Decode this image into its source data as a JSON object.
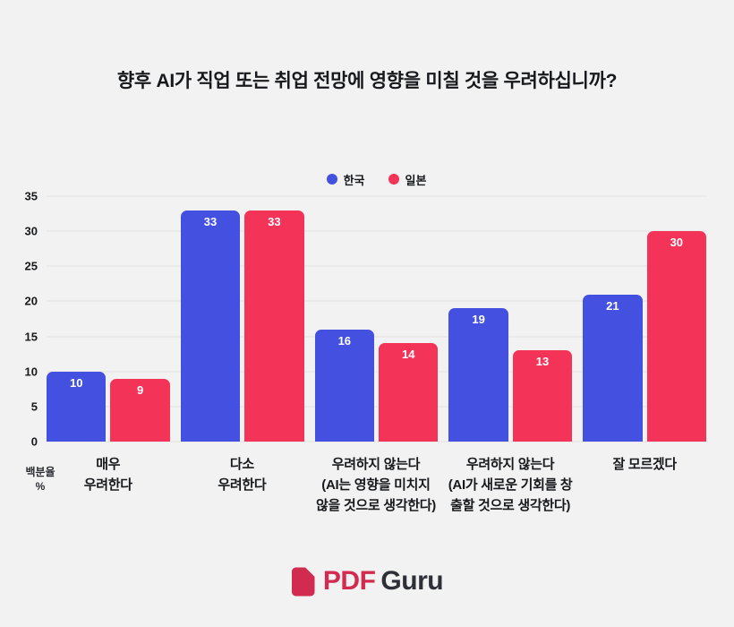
{
  "page": {
    "title": "향후 AI가 직업 또는 취업 전망에 영향을 미칠 것을 우려하십니까?",
    "background": "#f2f2f2"
  },
  "chart_data": {
    "type": "bar",
    "title": "향후 AI가 직업 또는 취업 전망에 영향을 미칠 것을 우려하십니까?",
    "categories": [
      [
        "매우",
        "우려한다"
      ],
      [
        "다소",
        "우려한다"
      ],
      [
        "우려하지 않는다",
        "(AI는 영향을 미치지",
        "않을 것으로 생각한다)"
      ],
      [
        "우려하지 않는다",
        "(AI가 새로운 기회를 창",
        "출할 것으로 생각한다)"
      ],
      [
        "잘 모르겠다"
      ]
    ],
    "series": [
      {
        "name": "한국",
        "color": "#4450e0",
        "values": [
          10,
          33,
          16,
          19,
          21
        ]
      },
      {
        "name": "일본",
        "color": "#f43358",
        "values": [
          9,
          33,
          14,
          13,
          30
        ]
      }
    ],
    "ylabel_lines": [
      "백분율",
      "%"
    ],
    "ylim": [
      0,
      35
    ],
    "yticks": [
      0,
      5,
      10,
      15,
      20,
      25,
      30,
      35
    ],
    "grid": true,
    "legend_position": "top-center",
    "value_labels": "inside-top-white"
  },
  "footer": {
    "brand_pdf": "PDF",
    "brand_guru": "Guru",
    "brand_color": "#d22b50",
    "guru_color": "#2e3038"
  }
}
